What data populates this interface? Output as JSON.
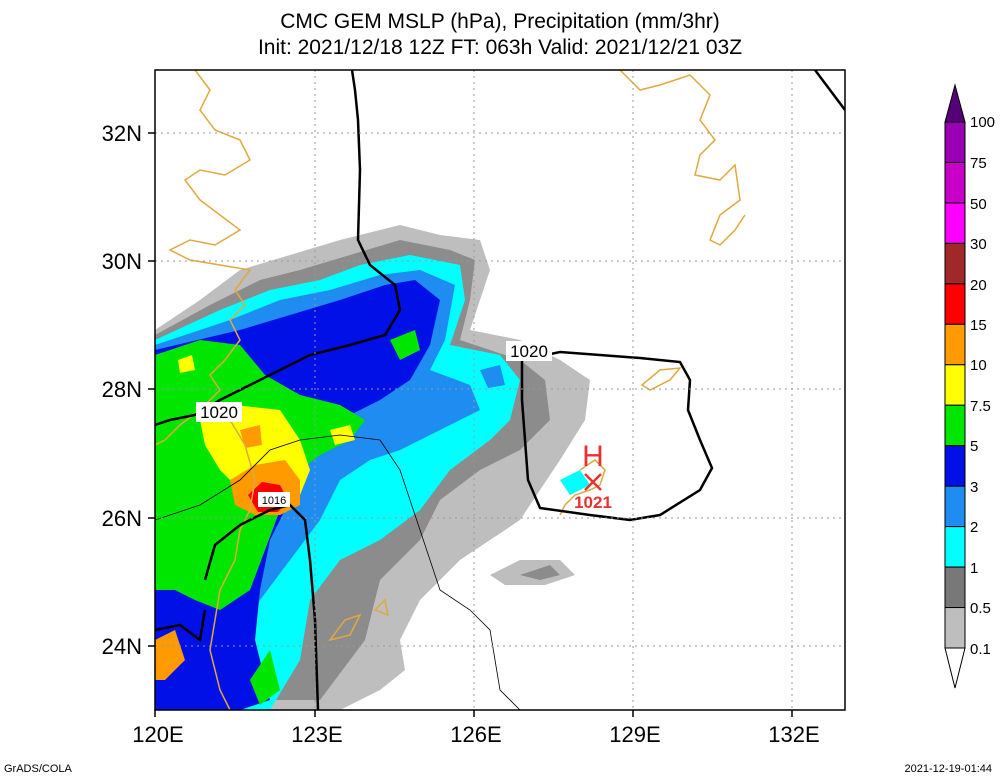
{
  "title": {
    "line1": "CMC GEM MSLP (hPa), Precipitation (mm/3hr)",
    "line2": "Init: 2021/12/18 12Z  FT: 063h  Valid: 2021/12/21 03Z"
  },
  "axes": {
    "lat_labels": [
      "32N",
      "30N",
      "28N",
      "26N",
      "24N"
    ],
    "lon_labels": [
      "120E",
      "123E",
      "126E",
      "129E",
      "132E"
    ]
  },
  "isobar_labels": [
    "1020",
    "1020",
    "1016"
  ],
  "high_center": {
    "symbol": "H",
    "value": "1021"
  },
  "colorbar": {
    "labels": [
      "100",
      "75",
      "50",
      "30",
      "20",
      "15",
      "10",
      "7.5",
      "5",
      "3",
      "2",
      "1",
      "0.5",
      "0.1"
    ],
    "colors": [
      "#9a00b4",
      "#c800c8",
      "#ff00ff",
      "#a02828",
      "#ff0000",
      "#ff9b00",
      "#ffff00",
      "#00e600",
      "#0010e6",
      "#1e8cf0",
      "#00ffff",
      "#787878",
      "#bebebe"
    ],
    "top_color": "#55007a"
  },
  "footer": {
    "left": "GrADS/COLA",
    "right": "2021-12-19-01:44"
  }
}
